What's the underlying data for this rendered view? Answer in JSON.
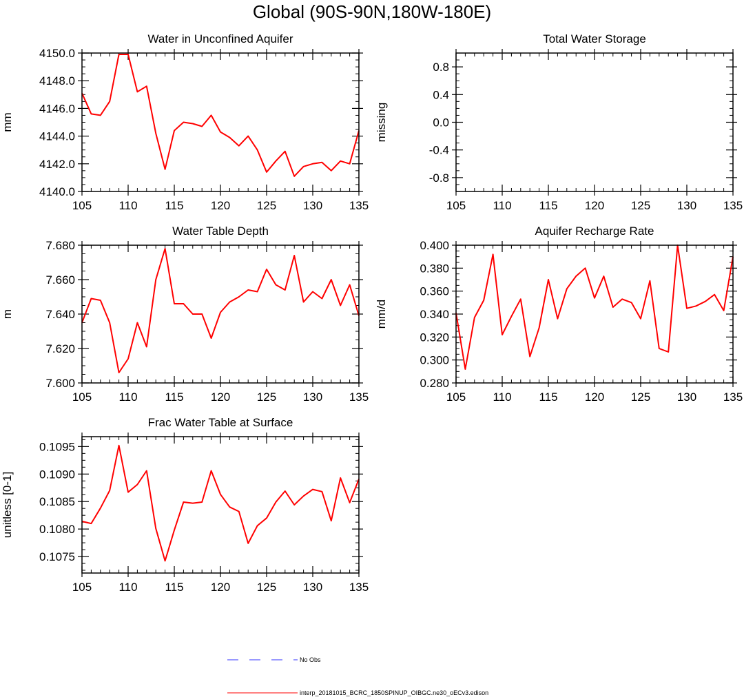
{
  "page_title": "Global (90S-90N,180W-180E)",
  "legend": [
    {
      "label": "No Obs",
      "color": "#3333ff",
      "style": "dashed"
    },
    {
      "label": "interp_20181015_BCRC_1850SPINUP_OIBGC.ne30_oECv3.edison",
      "color": "#ff0000",
      "style": "solid"
    }
  ],
  "chart_data": [
    {
      "type": "line",
      "title": "Water in Unconfined Aquifer",
      "ylabel": "mm",
      "xlim": [
        105,
        135
      ],
      "ylim": [
        4140.0,
        4150.0
      ],
      "xticks": [
        105,
        110,
        115,
        120,
        125,
        130,
        135
      ],
      "yticks": [
        "4140.0",
        "4142.0",
        "4144.0",
        "4146.0",
        "4148.0",
        "4150.0"
      ],
      "grid": false,
      "series": [
        {
          "color": "#ff0000",
          "x": [
            105,
            106,
            107,
            108,
            109,
            110,
            111,
            112,
            113,
            114,
            115,
            116,
            117,
            118,
            119,
            120,
            121,
            122,
            123,
            124,
            125,
            126,
            127,
            128,
            129,
            130,
            131,
            132,
            133,
            134,
            135
          ],
          "values": [
            4147.1,
            4145.6,
            4145.5,
            4146.5,
            4149.9,
            4149.9,
            4147.2,
            4147.6,
            4144.2,
            4141.6,
            4144.4,
            4145.0,
            4144.9,
            4144.7,
            4145.5,
            4144.3,
            4143.9,
            4143.3,
            4144.0,
            4143.0,
            4141.4,
            4142.2,
            4142.9,
            4141.1,
            4141.8,
            4142.0,
            4142.1,
            4141.5,
            4142.2,
            4142.0,
            4144.4
          ]
        }
      ]
    },
    {
      "type": "line",
      "title": "Total Water Storage",
      "ylabel": "missing",
      "xlim": [
        105,
        135
      ],
      "ylim": [
        -1.0,
        1.0
      ],
      "xticks": [
        105,
        110,
        115,
        120,
        125,
        130,
        135
      ],
      "yticks": [
        "-0.8",
        "-0.4",
        "0.0",
        "0.4",
        "0.8"
      ],
      "grid": false,
      "series": []
    },
    {
      "type": "line",
      "title": "Water Table Depth",
      "ylabel": "m",
      "xlim": [
        105,
        135
      ],
      "ylim": [
        7.6,
        7.68
      ],
      "xticks": [
        105,
        110,
        115,
        120,
        125,
        130,
        135
      ],
      "yticks": [
        "7.600",
        "7.620",
        "7.640",
        "7.660",
        "7.680"
      ],
      "grid": false,
      "series": [
        {
          "color": "#ff0000",
          "x": [
            105,
            106,
            107,
            108,
            109,
            110,
            111,
            112,
            113,
            114,
            115,
            116,
            117,
            118,
            119,
            120,
            121,
            122,
            123,
            124,
            125,
            126,
            127,
            128,
            129,
            130,
            131,
            132,
            133,
            134,
            135
          ],
          "values": [
            7.635,
            7.649,
            7.648,
            7.635,
            7.606,
            7.614,
            7.635,
            7.621,
            7.66,
            7.678,
            7.646,
            7.646,
            7.64,
            7.64,
            7.626,
            7.641,
            7.647,
            7.65,
            7.654,
            7.653,
            7.666,
            7.657,
            7.654,
            7.674,
            7.647,
            7.653,
            7.649,
            7.66,
            7.645,
            7.657,
            7.639
          ]
        }
      ]
    },
    {
      "type": "line",
      "title": "Aquifer Recharge Rate",
      "ylabel": "mm/d",
      "xlim": [
        105,
        135
      ],
      "ylim": [
        0.28,
        0.4
      ],
      "xticks": [
        105,
        110,
        115,
        120,
        125,
        130,
        135
      ],
      "yticks": [
        "0.280",
        "0.300",
        "0.320",
        "0.340",
        "0.360",
        "0.380",
        "0.400"
      ],
      "grid": false,
      "series": [
        {
          "color": "#ff0000",
          "x": [
            105,
            106,
            107,
            108,
            109,
            110,
            111,
            112,
            113,
            114,
            115,
            116,
            117,
            118,
            119,
            120,
            121,
            122,
            123,
            124,
            125,
            126,
            127,
            128,
            129,
            130,
            131,
            132,
            133,
            134,
            135
          ],
          "values": [
            0.341,
            0.292,
            0.337,
            0.352,
            0.392,
            0.322,
            0.338,
            0.353,
            0.303,
            0.328,
            0.37,
            0.336,
            0.362,
            0.373,
            0.38,
            0.354,
            0.373,
            0.346,
            0.353,
            0.35,
            0.336,
            0.369,
            0.31,
            0.307,
            0.4,
            0.345,
            0.347,
            0.351,
            0.357,
            0.343,
            0.39
          ]
        }
      ]
    },
    {
      "type": "line",
      "title": "Frac Water Table at Surface",
      "ylabel": "unitless [0-1]",
      "xlim": [
        105,
        135
      ],
      "ylim": [
        0.1072,
        0.10968
      ],
      "xticks": [
        105,
        110,
        115,
        120,
        125,
        130,
        135
      ],
      "yticks": [
        "0.1075",
        "0.1080",
        "0.1085",
        "0.1090",
        "0.1095"
      ],
      "grid": false,
      "series": [
        {
          "color": "#ff0000",
          "x": [
            105,
            106,
            107,
            108,
            109,
            110,
            111,
            112,
            113,
            114,
            115,
            116,
            117,
            118,
            119,
            120,
            121,
            122,
            123,
            124,
            125,
            126,
            127,
            128,
            129,
            130,
            131,
            132,
            133,
            134,
            135
          ],
          "values": [
            0.10814,
            0.1081,
            0.10838,
            0.1087,
            0.10952,
            0.10867,
            0.10881,
            0.10906,
            0.10801,
            0.10742,
            0.10798,
            0.10849,
            0.10847,
            0.10849,
            0.10906,
            0.10863,
            0.1084,
            0.10832,
            0.10774,
            0.10806,
            0.1082,
            0.10849,
            0.10869,
            0.10844,
            0.1086,
            0.10872,
            0.10868,
            0.10815,
            0.10893,
            0.10848,
            0.10891
          ]
        }
      ]
    }
  ]
}
